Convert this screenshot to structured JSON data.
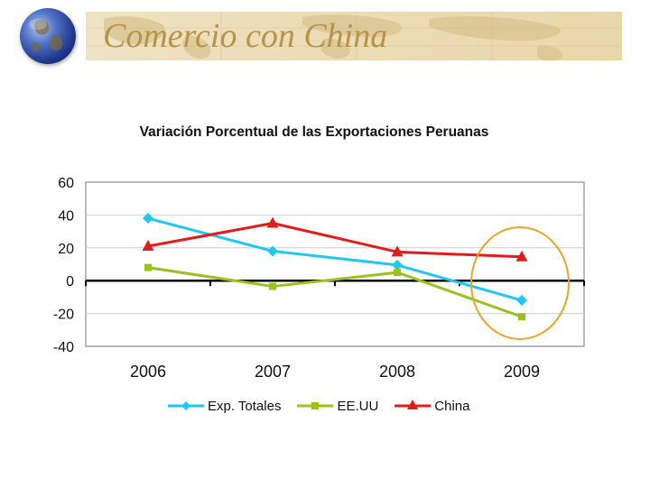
{
  "slide": {
    "title": "Comercio con China"
  },
  "chart_data": {
    "type": "line",
    "title": "Variación Porcentual de las Exportaciones Peruanas",
    "categories": [
      "2006",
      "2007",
      "2008",
      "2009"
    ],
    "ylim": [
      -40,
      60
    ],
    "yticks": [
      60,
      40,
      20,
      0,
      -20,
      -40
    ],
    "grid": true,
    "legend": "bottom",
    "series": [
      {
        "name": "Exp. Totales",
        "values": [
          38,
          18,
          9.5,
          -12
        ],
        "color": "#22c7ef",
        "marker": "diamond"
      },
      {
        "name": "EE.UU",
        "values": [
          8,
          -3.5,
          5,
          -22
        ],
        "color": "#99c21f",
        "marker": "square"
      },
      {
        "name": "China",
        "values": [
          21,
          35,
          17.5,
          14.5
        ],
        "color": "#e21b1b",
        "marker": "triangle"
      }
    ],
    "annotation": {
      "type": "ellipse-highlight",
      "category": "2009",
      "color": "#e9a42c"
    }
  }
}
